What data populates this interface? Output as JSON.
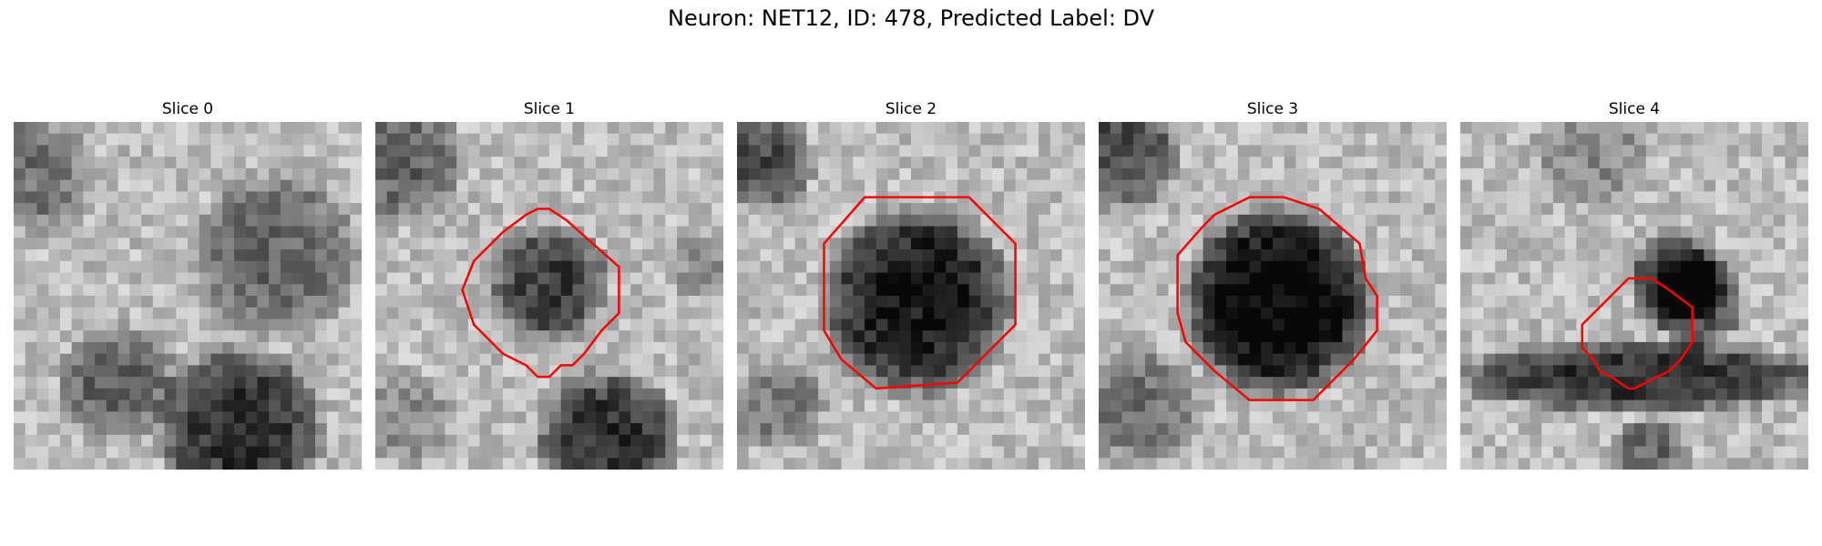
{
  "figure": {
    "title": "Neuron: NET12, ID: 478, Predicted Label: DV",
    "contour_color": "#ff0000"
  },
  "slices": [
    {
      "title": "Slice 0",
      "has_contour": false
    },
    {
      "title": "Slice 1",
      "has_contour": true
    },
    {
      "title": "Slice 2",
      "has_contour": true
    },
    {
      "title": "Slice 3",
      "has_contour": true
    },
    {
      "title": "Slice 4",
      "has_contour": true
    }
  ]
}
